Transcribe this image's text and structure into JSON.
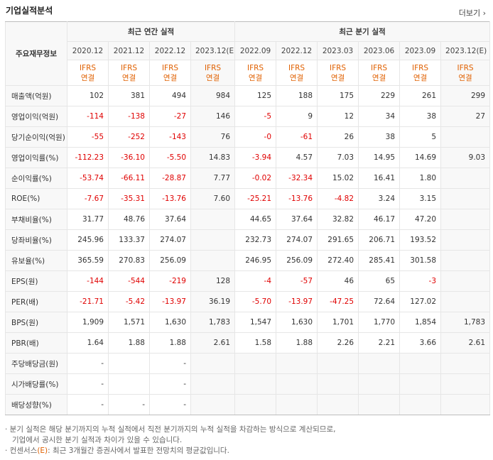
{
  "header": {
    "title": "기업실적분석",
    "more_label": "더보기 ›"
  },
  "table": {
    "corner_label": "주요재무정보",
    "annual_group": "최근 연간 실적",
    "quarter_group": "최근 분기 실적",
    "annual_periods": [
      "2020.12",
      "2021.12",
      "2022.12",
      "2023.12(E)"
    ],
    "quarter_periods": [
      "2022.09",
      "2022.12",
      "2023.03",
      "2023.06",
      "2023.09",
      "2023.12(E)"
    ],
    "basis_line1": "IFRS",
    "basis_line2": "연결",
    "rows": [
      {
        "label": "매출액(억원)",
        "values": [
          "102",
          "381",
          "494",
          "984",
          "125",
          "188",
          "175",
          "229",
          "261",
          "299"
        ]
      },
      {
        "label": "영업이익(억원)",
        "values": [
          "-114",
          "-138",
          "-27",
          "146",
          "-5",
          "9",
          "12",
          "34",
          "38",
          "27"
        ]
      },
      {
        "label": "당기순이익(억원)",
        "values": [
          "-55",
          "-252",
          "-143",
          "76",
          "-0",
          "-61",
          "26",
          "38",
          "5",
          ""
        ]
      },
      {
        "label": "영업이익률(%)",
        "values": [
          "-112.23",
          "-36.10",
          "-5.50",
          "14.83",
          "-3.94",
          "4.57",
          "7.03",
          "14.95",
          "14.69",
          "9.03"
        ]
      },
      {
        "label": "순이익률(%)",
        "values": [
          "-53.74",
          "-66.11",
          "-28.87",
          "7.77",
          "-0.02",
          "-32.34",
          "15.02",
          "16.41",
          "1.80",
          ""
        ]
      },
      {
        "label": "ROE(%)",
        "values": [
          "-7.67",
          "-35.31",
          "-13.76",
          "7.60",
          "-25.21",
          "-13.76",
          "-4.82",
          "3.24",
          "3.15",
          ""
        ]
      },
      {
        "label": "부채비율(%)",
        "values": [
          "31.77",
          "48.76",
          "37.64",
          "",
          "44.65",
          "37.64",
          "32.82",
          "46.17",
          "47.20",
          ""
        ]
      },
      {
        "label": "당좌비율(%)",
        "values": [
          "245.96",
          "133.37",
          "274.07",
          "",
          "232.73",
          "274.07",
          "291.65",
          "206.71",
          "193.52",
          ""
        ]
      },
      {
        "label": "유보율(%)",
        "values": [
          "365.59",
          "270.83",
          "256.09",
          "",
          "246.95",
          "256.09",
          "272.40",
          "285.41",
          "301.58",
          ""
        ]
      },
      {
        "label": "EPS(원)",
        "values": [
          "-144",
          "-544",
          "-219",
          "128",
          "-4",
          "-57",
          "46",
          "65",
          "-3",
          ""
        ]
      },
      {
        "label": "PER(배)",
        "values": [
          "-21.71",
          "-5.42",
          "-13.97",
          "36.19",
          "-5.70",
          "-13.97",
          "-47.25",
          "72.64",
          "127.02",
          ""
        ]
      },
      {
        "label": "BPS(원)",
        "values": [
          "1,909",
          "1,571",
          "1,630",
          "1,783",
          "1,547",
          "1,630",
          "1,701",
          "1,770",
          "1,854",
          "1,783"
        ]
      },
      {
        "label": "PBR(배)",
        "values": [
          "1.64",
          "1.88",
          "1.88",
          "2.61",
          "1.58",
          "1.88",
          "2.26",
          "2.21",
          "3.66",
          "2.61"
        ]
      },
      {
        "label": "주당배당금(원)",
        "values": [
          "-",
          "",
          "-",
          "",
          "",
          "",
          "",
          "",
          "",
          ""
        ]
      },
      {
        "label": "시가배당률(%)",
        "values": [
          "-",
          "",
          "-",
          "",
          "",
          "",
          "",
          "",
          "",
          ""
        ]
      },
      {
        "label": "배당성향(%)",
        "values": [
          "-",
          "-",
          "-",
          "",
          "",
          "",
          "",
          "",
          "",
          ""
        ]
      }
    ]
  },
  "notes": {
    "line1": "· 분기 실적은 해당 분기까지의 누적 실적에서 직전 분기까지의 누적 실적을 차감하는 방식으로 계산되므로,",
    "line2": "기업에서 공시한 분기 실적과 차이가 있을 수 있습니다.",
    "line3_prefix": "· 컨센서스",
    "line3_mark": "(E)",
    "line3_suffix": ": 최근 3개월간 증권사에서 발표한 전망치의 평균값입니다."
  },
  "colors": {
    "negative": "#e00000",
    "ifrs": "#e06000",
    "header_bg": "#f8f8f8"
  }
}
